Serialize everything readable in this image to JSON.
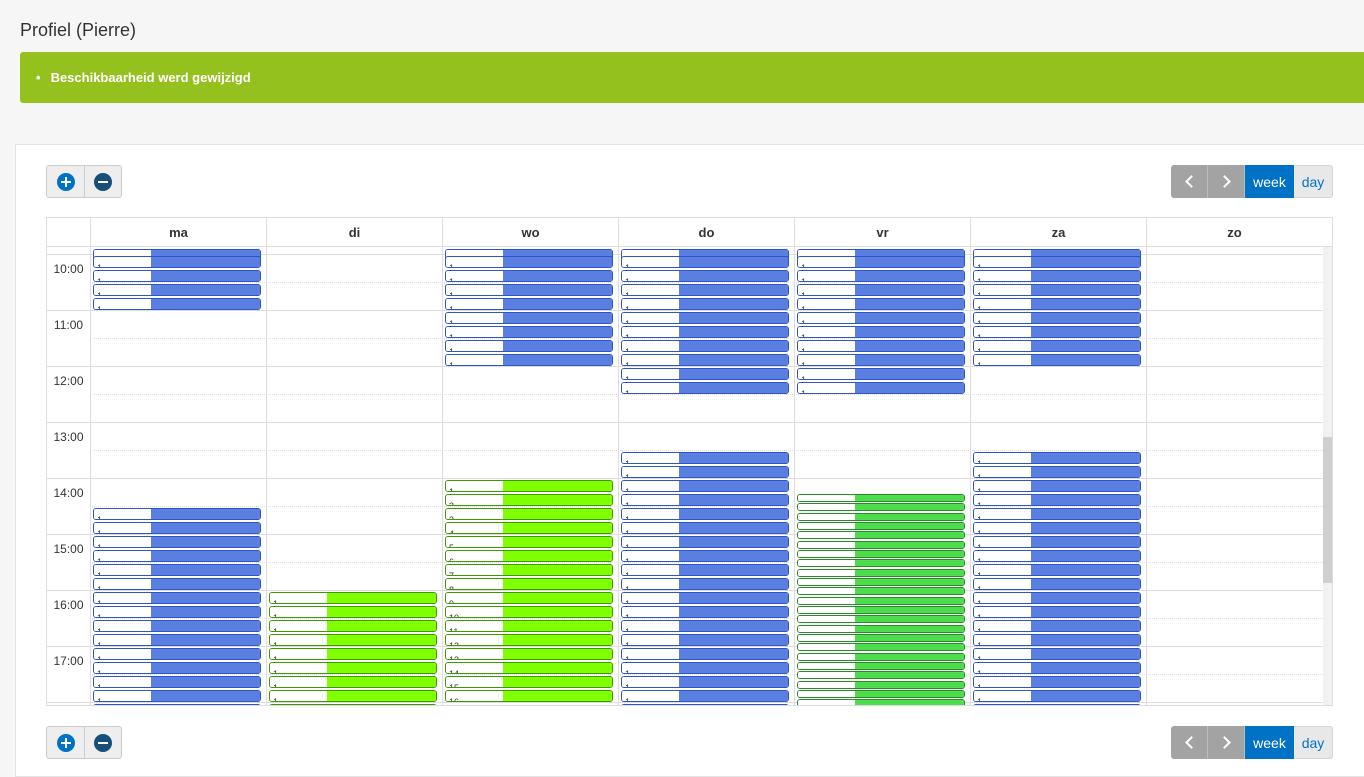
{
  "page": {
    "title": "Profiel (Pierre)"
  },
  "alert": {
    "message": "Beschikbaarheid werd gewijzigd",
    "color": "#95c11f"
  },
  "toolbar": {
    "zoom_in_icon": "plus-circle-icon",
    "zoom_out_icon": "minus-circle-icon",
    "prev_icon": "chevron-left-icon",
    "next_icon": "chevron-right-icon",
    "week_label": "week",
    "day_label": "day",
    "active_view": "week"
  },
  "calendar": {
    "days": [
      "ma",
      "di",
      "wo",
      "do",
      "vr",
      "za",
      "zo"
    ],
    "times": [
      "10:00",
      "11:00",
      "12:00",
      "13:00",
      "14:00",
      "15:00",
      "16:00",
      "17:00"
    ],
    "colors": {
      "blue_fill": "#5b7fe0",
      "blue_border": "#2d55c7",
      "green_fill": "#7fff00",
      "green_border": "#3a9a00",
      "green2_fill": "#4cdc4c",
      "green2_border": "#2a8a2a"
    },
    "slots": [
      {
        "day": 0,
        "kind": "blue",
        "starts": [
          -0.5,
          0,
          1,
          2,
          3
        ],
        "label": "1"
      },
      {
        "day": 0,
        "kind": "blue",
        "starts": [
          18,
          19,
          20,
          21,
          22,
          23,
          24,
          25,
          26,
          27,
          28,
          29,
          30,
          31,
          32,
          33
        ],
        "label": "1"
      },
      {
        "day": 1,
        "kind": "green",
        "starts": [
          24,
          25,
          26,
          27,
          28,
          29,
          30,
          31,
          32,
          33
        ],
        "label": "1"
      },
      {
        "day": 2,
        "kind": "blue",
        "starts": [
          -0.5,
          0,
          1,
          2,
          3,
          4,
          5,
          6,
          7
        ],
        "label": "1"
      },
      {
        "day": 2,
        "kind": "green",
        "labels": [
          "1",
          "2",
          "3",
          "4",
          "5",
          "6",
          "7",
          "8",
          "9",
          "10",
          "11",
          "12",
          "13",
          "14",
          "15",
          "16"
        ],
        "starts": [
          16,
          17,
          18,
          19,
          20,
          21,
          22,
          23,
          24,
          25,
          26,
          27,
          28,
          29,
          30,
          31
        ]
      },
      {
        "day": 3,
        "kind": "blue",
        "starts": [
          -0.5,
          0,
          1,
          2,
          3,
          4,
          5,
          6,
          7,
          8,
          9
        ],
        "label": "1"
      },
      {
        "day": 3,
        "kind": "blue",
        "starts": [
          14,
          15,
          16,
          17,
          18,
          19,
          20,
          21,
          22,
          23,
          24,
          25,
          26,
          27,
          28,
          29,
          30,
          31,
          32
        ],
        "label": "1"
      },
      {
        "day": 4,
        "kind": "blue",
        "starts": [
          -0.5,
          0,
          1,
          2,
          3,
          4,
          5,
          6,
          7,
          8,
          9
        ],
        "label": "1"
      },
      {
        "day": 4,
        "kind": "green2",
        "starts": [
          17,
          17.66,
          18.33,
          19,
          19.66,
          20.33,
          21,
          21.66,
          22.33,
          23,
          23.66,
          24.33,
          25,
          25.66,
          26.33,
          27,
          27.66,
          28.33,
          29,
          29.66,
          30.33,
          31,
          31.66,
          32.33
        ],
        "label": ""
      },
      {
        "day": 5,
        "kind": "blue",
        "starts": [
          -0.5,
          0,
          1,
          2,
          3,
          4,
          5,
          6,
          7
        ],
        "label": "1"
      },
      {
        "day": 5,
        "kind": "blue",
        "starts": [
          14,
          15,
          16,
          17,
          18,
          19,
          20,
          21,
          22,
          23,
          24,
          25,
          26,
          27,
          28,
          29,
          30,
          31,
          32
        ],
        "label": "1"
      }
    ]
  }
}
